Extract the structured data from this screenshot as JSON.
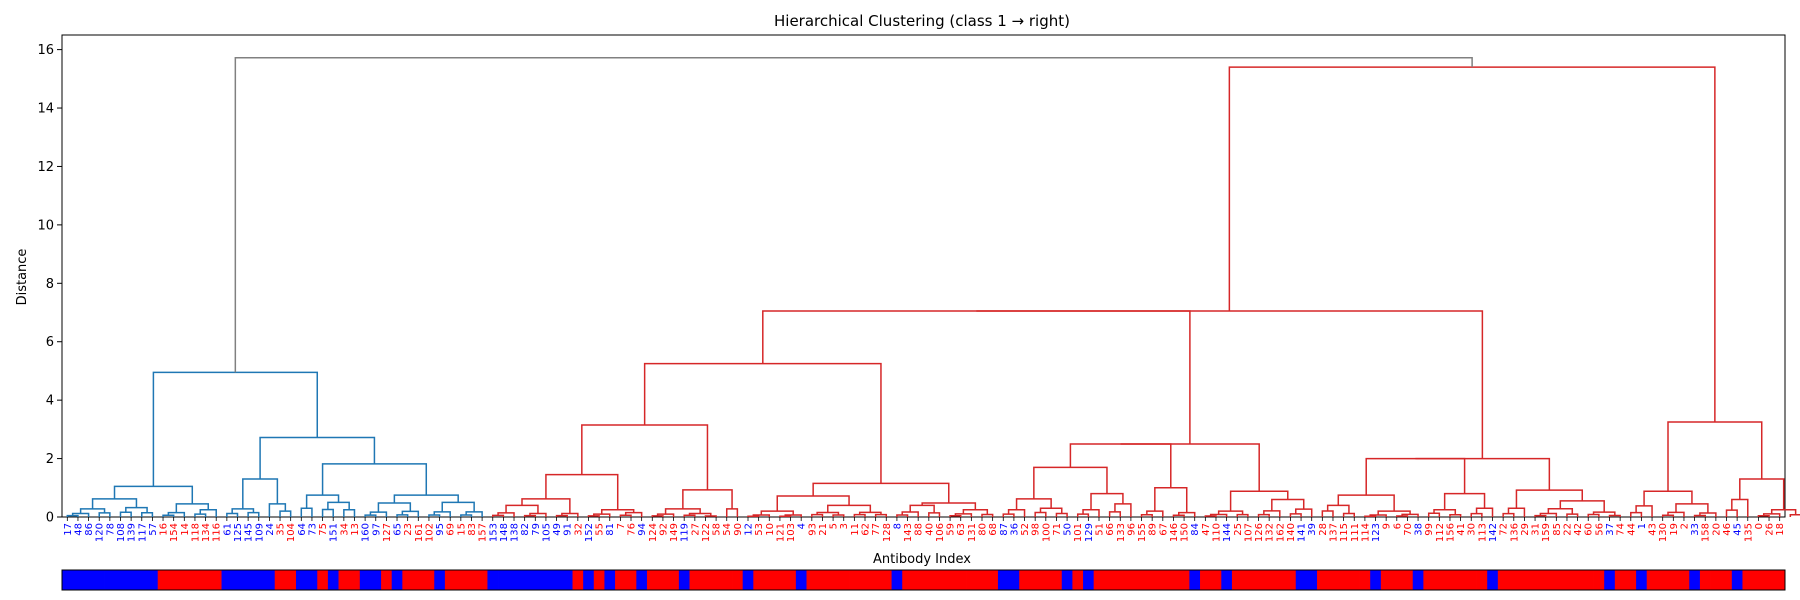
{
  "chart_data": {
    "type": "dendrogram",
    "title": "Hierarchical Clustering (class 1 → right)",
    "xlabel": "Antibody Index",
    "ylabel": "Distance",
    "ylim": [
      0,
      16.5
    ],
    "yticks": [
      0,
      2,
      4,
      6,
      8,
      10,
      12,
      14,
      16
    ],
    "leaves": [
      {
        "id": "17",
        "cls": 0
      },
      {
        "id": "48",
        "cls": 0
      },
      {
        "id": "86",
        "cls": 0
      },
      {
        "id": "120",
        "cls": 0
      },
      {
        "id": "78",
        "cls": 0
      },
      {
        "id": "108",
        "cls": 0
      },
      {
        "id": "139",
        "cls": 0
      },
      {
        "id": "117",
        "cls": 0
      },
      {
        "id": "57",
        "cls": 0
      },
      {
        "id": "16",
        "cls": 1
      },
      {
        "id": "154",
        "cls": 1
      },
      {
        "id": "14",
        "cls": 1
      },
      {
        "id": "118",
        "cls": 1
      },
      {
        "id": "134",
        "cls": 1
      },
      {
        "id": "116",
        "cls": 1
      },
      {
        "id": "61",
        "cls": 0
      },
      {
        "id": "125",
        "cls": 0
      },
      {
        "id": "145",
        "cls": 0
      },
      {
        "id": "109",
        "cls": 0
      },
      {
        "id": "24",
        "cls": 0
      },
      {
        "id": "35",
        "cls": 1
      },
      {
        "id": "104",
        "cls": 1
      },
      {
        "id": "64",
        "cls": 0
      },
      {
        "id": "73",
        "cls": 0
      },
      {
        "id": "75",
        "cls": 1
      },
      {
        "id": "151",
        "cls": 0
      },
      {
        "id": "34",
        "cls": 1
      },
      {
        "id": "13",
        "cls": 1
      },
      {
        "id": "160",
        "cls": 0
      },
      {
        "id": "97",
        "cls": 0
      },
      {
        "id": "127",
        "cls": 1
      },
      {
        "id": "65",
        "cls": 0
      },
      {
        "id": "23",
        "cls": 1
      },
      {
        "id": "161",
        "cls": 1
      },
      {
        "id": "102",
        "cls": 1
      },
      {
        "id": "95",
        "cls": 0
      },
      {
        "id": "69",
        "cls": 1
      },
      {
        "id": "15",
        "cls": 1
      },
      {
        "id": "83",
        "cls": 1
      },
      {
        "id": "157",
        "cls": 1
      },
      {
        "id": "153",
        "cls": 0
      },
      {
        "id": "148",
        "cls": 0
      },
      {
        "id": "138",
        "cls": 0
      },
      {
        "id": "82",
        "cls": 0
      },
      {
        "id": "79",
        "cls": 0
      },
      {
        "id": "105",
        "cls": 0
      },
      {
        "id": "49",
        "cls": 0
      },
      {
        "id": "91",
        "cls": 0
      },
      {
        "id": "32",
        "cls": 1
      },
      {
        "id": "152",
        "cls": 0
      },
      {
        "id": "55",
        "cls": 1
      },
      {
        "id": "81",
        "cls": 0
      },
      {
        "id": "7",
        "cls": 1
      },
      {
        "id": "76",
        "cls": 1
      },
      {
        "id": "94",
        "cls": 0
      },
      {
        "id": "124",
        "cls": 1
      },
      {
        "id": "92",
        "cls": 1
      },
      {
        "id": "149",
        "cls": 1
      },
      {
        "id": "119",
        "cls": 0
      },
      {
        "id": "27",
        "cls": 1
      },
      {
        "id": "122",
        "cls": 1
      },
      {
        "id": "58",
        "cls": 1
      },
      {
        "id": "54",
        "cls": 1
      },
      {
        "id": "90",
        "cls": 1
      },
      {
        "id": "12",
        "cls": 0
      },
      {
        "id": "53",
        "cls": 1
      },
      {
        "id": "10",
        "cls": 1
      },
      {
        "id": "121",
        "cls": 1
      },
      {
        "id": "103",
        "cls": 1
      },
      {
        "id": "4",
        "cls": 0
      },
      {
        "id": "93",
        "cls": 1
      },
      {
        "id": "21",
        "cls": 1
      },
      {
        "id": "5",
        "cls": 1
      },
      {
        "id": "3",
        "cls": 1
      },
      {
        "id": "11",
        "cls": 1
      },
      {
        "id": "62",
        "cls": 1
      },
      {
        "id": "77",
        "cls": 1
      },
      {
        "id": "128",
        "cls": 1
      },
      {
        "id": "8",
        "cls": 0
      },
      {
        "id": "143",
        "cls": 1
      },
      {
        "id": "88",
        "cls": 1
      },
      {
        "id": "40",
        "cls": 1
      },
      {
        "id": "106",
        "cls": 1
      },
      {
        "id": "59",
        "cls": 1
      },
      {
        "id": "63",
        "cls": 1
      },
      {
        "id": "131",
        "cls": 1
      },
      {
        "id": "80",
        "cls": 1
      },
      {
        "id": "68",
        "cls": 1
      },
      {
        "id": "87",
        "cls": 0
      },
      {
        "id": "36",
        "cls": 0
      },
      {
        "id": "52",
        "cls": 1
      },
      {
        "id": "98",
        "cls": 1
      },
      {
        "id": "100",
        "cls": 1
      },
      {
        "id": "71",
        "cls": 1
      },
      {
        "id": "50",
        "cls": 0
      },
      {
        "id": "101",
        "cls": 1
      },
      {
        "id": "129",
        "cls": 0
      },
      {
        "id": "51",
        "cls": 1
      },
      {
        "id": "66",
        "cls": 1
      },
      {
        "id": "133",
        "cls": 1
      },
      {
        "id": "96",
        "cls": 1
      },
      {
        "id": "155",
        "cls": 1
      },
      {
        "id": "89",
        "cls": 1
      },
      {
        "id": "67",
        "cls": 1
      },
      {
        "id": "146",
        "cls": 1
      },
      {
        "id": "150",
        "cls": 1
      },
      {
        "id": "84",
        "cls": 0
      },
      {
        "id": "47",
        "cls": 1
      },
      {
        "id": "110",
        "cls": 1
      },
      {
        "id": "144",
        "cls": 0
      },
      {
        "id": "25",
        "cls": 1
      },
      {
        "id": "107",
        "cls": 1
      },
      {
        "id": "126",
        "cls": 1
      },
      {
        "id": "132",
        "cls": 1
      },
      {
        "id": "162",
        "cls": 1
      },
      {
        "id": "140",
        "cls": 1
      },
      {
        "id": "141",
        "cls": 0
      },
      {
        "id": "39",
        "cls": 0
      },
      {
        "id": "28",
        "cls": 1
      },
      {
        "id": "137",
        "cls": 1
      },
      {
        "id": "115",
        "cls": 1
      },
      {
        "id": "111",
        "cls": 1
      },
      {
        "id": "114",
        "cls": 1
      },
      {
        "id": "123",
        "cls": 0
      },
      {
        "id": "9",
        "cls": 1
      },
      {
        "id": "6",
        "cls": 1
      },
      {
        "id": "70",
        "cls": 1
      },
      {
        "id": "38",
        "cls": 0
      },
      {
        "id": "99",
        "cls": 1
      },
      {
        "id": "112",
        "cls": 1
      },
      {
        "id": "156",
        "cls": 1
      },
      {
        "id": "41",
        "cls": 1
      },
      {
        "id": "30",
        "cls": 1
      },
      {
        "id": "113",
        "cls": 1
      },
      {
        "id": "142",
        "cls": 0
      },
      {
        "id": "72",
        "cls": 1
      },
      {
        "id": "136",
        "cls": 1
      },
      {
        "id": "29",
        "cls": 1
      },
      {
        "id": "31",
        "cls": 1
      },
      {
        "id": "159",
        "cls": 1
      },
      {
        "id": "85",
        "cls": 1
      },
      {
        "id": "22",
        "cls": 1
      },
      {
        "id": "42",
        "cls": 1
      },
      {
        "id": "60",
        "cls": 1
      },
      {
        "id": "56",
        "cls": 1
      },
      {
        "id": "37",
        "cls": 0
      },
      {
        "id": "74",
        "cls": 1
      },
      {
        "id": "44",
        "cls": 1
      },
      {
        "id": "1",
        "cls": 0
      },
      {
        "id": "43",
        "cls": 1
      },
      {
        "id": "130",
        "cls": 1
      },
      {
        "id": "19",
        "cls": 1
      },
      {
        "id": "2",
        "cls": 1
      },
      {
        "id": "33",
        "cls": 0
      },
      {
        "id": "158",
        "cls": 1
      },
      {
        "id": "20",
        "cls": 1
      },
      {
        "id": "46",
        "cls": 1
      },
      {
        "id": "45",
        "cls": 0
      },
      {
        "id": "135",
        "cls": 1
      },
      {
        "id": "0",
        "cls": 1
      },
      {
        "id": "26",
        "cls": 1
      },
      {
        "id": "18",
        "cls": 1
      }
    ],
    "class_colors": {
      "0": "#0000ff",
      "1": "#ff0000"
    },
    "cluster_colors": {
      "left": "#1f77b4",
      "right": "#d62728",
      "root": "#808080"
    },
    "merges": [
      {
        "span": [
          0,
          8
        ],
        "h": 0.62,
        "split": 4,
        "hl": 0.28,
        "hr": 0.32,
        "cluster": "left"
      },
      {
        "span": [
          9,
          14
        ],
        "h": 0.45,
        "split": 11,
        "hl": 0.15,
        "hr": 0.25,
        "cluster": "left"
      },
      {
        "span": [
          0,
          14
        ],
        "h": 1.05,
        "split": 8,
        "cluster": "left"
      },
      {
        "span": [
          15,
          18
        ],
        "h": 0.28,
        "split": 16,
        "hl": 0.12,
        "hr": 0.15,
        "cluster": "left"
      },
      {
        "span": [
          19,
          21
        ],
        "h": 0.45,
        "split": 19,
        "hr": 0.2,
        "cluster": "left"
      },
      {
        "span": [
          15,
          21
        ],
        "h": 1.3,
        "split": 18,
        "cluster": "left"
      },
      {
        "span": [
          22,
          27
        ],
        "h": 0.75,
        "split": 23,
        "hl": 0.3,
        "hr": 0.5,
        "cluster": "left"
      },
      {
        "span": [
          28,
          39
        ],
        "h": 0.75,
        "split": 33,
        "hl": 0.48,
        "hr": 0.5,
        "cluster": "left"
      },
      {
        "span": [
          22,
          39
        ],
        "h": 1.82,
        "split": 27,
        "cluster": "left"
      },
      {
        "span": [
          15,
          39
        ],
        "h": 2.72,
        "split": 21,
        "cluster": "left"
      },
      {
        "span": [
          0,
          39
        ],
        "h": 4.95,
        "split": 14,
        "cluster": "left"
      },
      {
        "span": [
          40,
          48
        ],
        "h": 0.62,
        "split": 45,
        "hl": 0.4,
        "hr": 0.12,
        "cluster": "right"
      },
      {
        "span": [
          49,
          54
        ],
        "h": 0.25,
        "split": 51,
        "hl": 0.1,
        "hr": 0.15,
        "cluster": "right"
      },
      {
        "span": [
          40,
          54
        ],
        "h": 1.45,
        "split": 48,
        "cluster": "right"
      },
      {
        "span": [
          55,
          61
        ],
        "h": 0.28,
        "split": 57,
        "hl": 0.1,
        "hr": 0.12,
        "cluster": "right"
      },
      {
        "span": [
          62,
          63
        ],
        "h": 0.28,
        "split": 62,
        "cluster": "right"
      },
      {
        "span": [
          55,
          63
        ],
        "h": 0.93,
        "split": 61,
        "cluster": "right"
      },
      {
        "span": [
          40,
          63
        ],
        "h": 3.15,
        "split": 54,
        "cluster": "right"
      },
      {
        "span": [
          64,
          77
        ],
        "h": 0.72,
        "split": 69,
        "hl": 0.2,
        "hr": 0.4,
        "cluster": "right"
      },
      {
        "span": [
          78,
          87
        ],
        "h": 0.48,
        "split": 82,
        "hl": 0.4,
        "hr": 0.25,
        "cluster": "right"
      },
      {
        "span": [
          64,
          87
        ],
        "h": 1.15,
        "split": 77,
        "cluster": "right"
      },
      {
        "span": [
          40,
          87
        ],
        "h": 5.25,
        "split": 63,
        "cluster": "right"
      },
      {
        "span": [
          88,
          94
        ],
        "h": 0.62,
        "split": 90,
        "hl": 0.25,
        "hr": 0.3,
        "cluster": "right"
      },
      {
        "span": [
          95,
          100
        ],
        "h": 0.8,
        "split": 97,
        "hl": 0.25,
        "hr": 0.45,
        "cluster": "right"
      },
      {
        "span": [
          88,
          100
        ],
        "h": 1.7,
        "split": 94,
        "cluster": "right"
      },
      {
        "span": [
          101,
          106
        ],
        "h": 1.0,
        "split": 103,
        "hl": 0.2,
        "hr": 0.15,
        "cluster": "right"
      },
      {
        "span": [
          88,
          106
        ],
        "h": 2.5,
        "split": 100,
        "cluster": "right"
      },
      {
        "span": [
          107,
          117
        ],
        "h": 0.88,
        "split": 111,
        "hl": 0.2,
        "hr": 0.6,
        "cluster": "right"
      },
      {
        "span": [
          88,
          117
        ],
        "h": 2.5,
        "split": 106,
        "cluster": "right"
      },
      {
        "span": [
          40,
          117
        ],
        "h": 7.05,
        "split": 87,
        "cluster": "right"
      },
      {
        "span": [
          118,
          127
        ],
        "h": 0.75,
        "split": 121,
        "hl": 0.4,
        "hr": 0.2,
        "cluster": "right"
      },
      {
        "span": [
          128,
          134
        ],
        "h": 0.8,
        "split": 131,
        "hl": 0.25,
        "hr": 0.3,
        "cluster": "right"
      },
      {
        "span": [
          118,
          134
        ],
        "h": 2.0,
        "split": 127,
        "cluster": "right"
      },
      {
        "span": [
          135,
          146
        ],
        "h": 0.92,
        "split": 137,
        "hl": 0.3,
        "hr": 0.55,
        "cluster": "right"
      },
      {
        "span": [
          118,
          146
        ],
        "h": 2.0,
        "split": 134,
        "cluster": "right"
      },
      {
        "span": [
          40,
          146
        ],
        "h": 7.05,
        "split": 117,
        "cluster": "right"
      },
      {
        "span": [
          147,
          155
        ],
        "h": 0.88,
        "split": 149,
        "hl": 0.38,
        "hr": 0.45,
        "cluster": "right"
      },
      {
        "span": [
          156,
          163
        ],
        "h": 1.3,
        "split": 158,
        "hl": 0.6,
        "hr": 0.25,
        "cluster": "right"
      },
      {
        "span": [
          147,
          163
        ],
        "h": 3.25,
        "split": 155,
        "cluster": "right"
      },
      {
        "span": [
          40,
          163
        ],
        "h": 15.4,
        "split": 146,
        "cluster": "right"
      },
      {
        "span": [
          0,
          163
        ],
        "h": 15.72,
        "split": 39,
        "cluster": "root"
      }
    ]
  }
}
